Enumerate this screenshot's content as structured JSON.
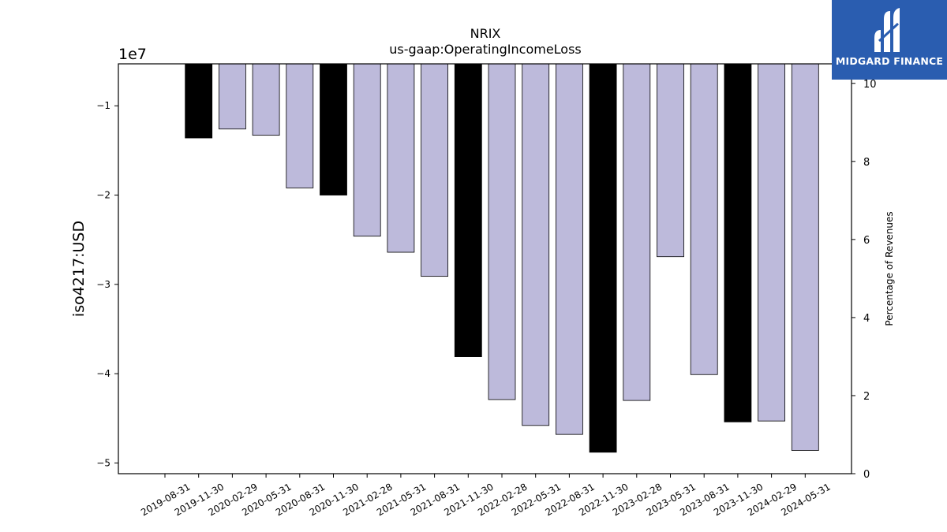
{
  "chart_data": {
    "type": "bar",
    "title": "NRIX",
    "subtitle": "us-gaap:OperatingIncomeLoss",
    "ylabel": "iso4217:USD",
    "ylabel_right": "Percentage of Revenues",
    "y_offset_label": "1e7",
    "ylim": [
      -5.12,
      -0.53
    ],
    "y_ticks": [
      -1,
      -2,
      -3,
      -4,
      -5
    ],
    "y_tick_labels": [
      "−1",
      "−2",
      "−3",
      "−4",
      "−5"
    ],
    "ylim_right": [
      0,
      10.5
    ],
    "y_ticks_right": [
      0,
      2,
      4,
      6,
      8,
      10
    ],
    "y_tick_labels_right": [
      "0",
      "2",
      "4",
      "6",
      "8",
      "10"
    ],
    "categories": [
      "2019-08-31",
      "2019-11-30",
      "2020-02-29",
      "2020-05-31",
      "2020-08-31",
      "2020-11-30",
      "2021-02-28",
      "2021-05-31",
      "2021-08-31",
      "2021-11-30",
      "2022-02-28",
      "2022-05-31",
      "2022-08-31",
      "2022-11-30",
      "2023-02-28",
      "2023-05-31",
      "2023-08-31",
      "2023-11-30",
      "2024-02-29",
      "2024-05-31"
    ],
    "values": [
      null,
      -13600000,
      -12600000,
      -13300000,
      -19200000,
      -20000000,
      -24600000,
      -26400000,
      -29100000,
      -38100000,
      -42900000,
      -45800000,
      -46800000,
      -48800000,
      -43000000,
      -26900000,
      -40100000,
      -45400000,
      -45300000,
      -48600000
    ],
    "bar_colors": [
      "",
      "#000000",
      "#bdbadb",
      "#bdbadb",
      "#bdbadb",
      "#000000",
      "#bdbadb",
      "#bdbadb",
      "#bdbadb",
      "#000000",
      "#bdbadb",
      "#bdbadb",
      "#bdbadb",
      "#000000",
      "#bdbadb",
      "#bdbadb",
      "#bdbadb",
      "#000000",
      "#bdbadb",
      "#bdbadb"
    ],
    "grid": false,
    "legend": "none"
  },
  "logo": {
    "text": "MIDGARD FINANCE",
    "background": "#2a5db0"
  }
}
